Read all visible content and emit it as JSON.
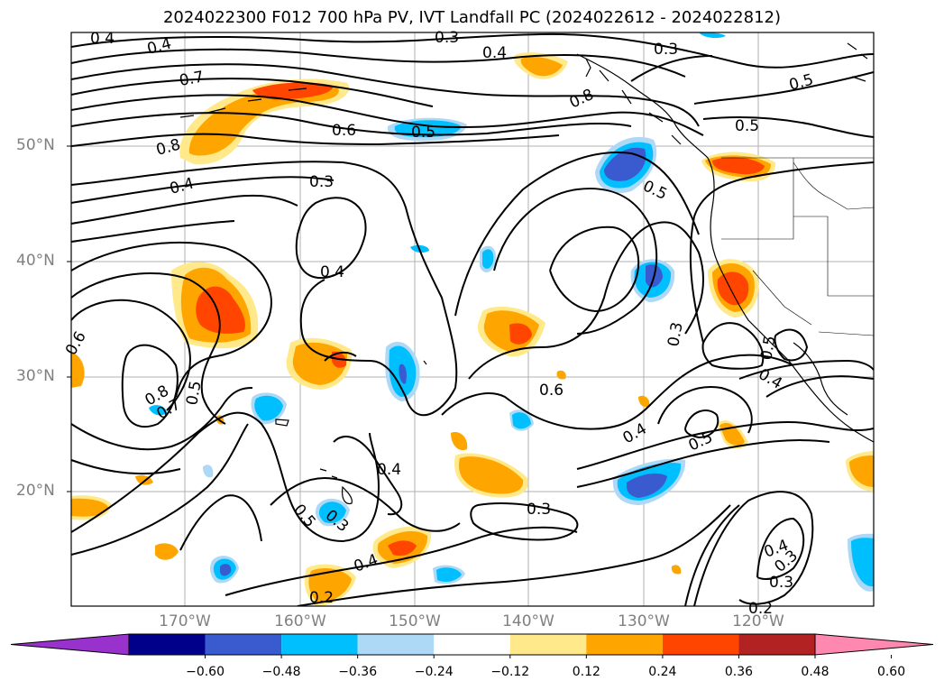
{
  "title": "2024022300 F012 700 hPa PV, IVT Landfall PC (2024022612 - 2024022812)",
  "lat_labels": [
    "50°N",
    "40°N",
    "30°N",
    "20°N"
  ],
  "lon_labels": [
    "170°W",
    "160°W",
    "150°W",
    "140°W",
    "130°W",
    "120°W"
  ],
  "contour_labels": [
    "0.4",
    "0.4",
    "0.3",
    "0.4",
    "0.3",
    "0.5",
    "0.7",
    "0.8",
    "0.6",
    "0.5",
    "0.5",
    "0.8",
    "0.4",
    "0.3",
    "0.5",
    "0.4",
    "0.6",
    "0.8",
    "0.7",
    "0.5",
    "0.6",
    "0.3",
    "0.5",
    "0.4",
    "0.4",
    "0.5",
    "0.3",
    "0.3",
    "0.4",
    "0.5",
    "0.3",
    "0.4",
    "0.3",
    "0.2",
    "0.2",
    "0.4"
  ],
  "colorbar": {
    "ticks": [
      "−0.60",
      "−0.48",
      "−0.36",
      "−0.24",
      "−0.12",
      "0.12",
      "0.24",
      "0.36",
      "0.48",
      "0.60"
    ],
    "colors": [
      "#9932cc",
      "#00008b",
      "#3a5bd0",
      "#00bfff",
      "#add8f6",
      "#ffffff",
      "#ffe98a",
      "#ffa500",
      "#ff4500",
      "#b22222",
      "#ff88b0"
    ]
  }
}
